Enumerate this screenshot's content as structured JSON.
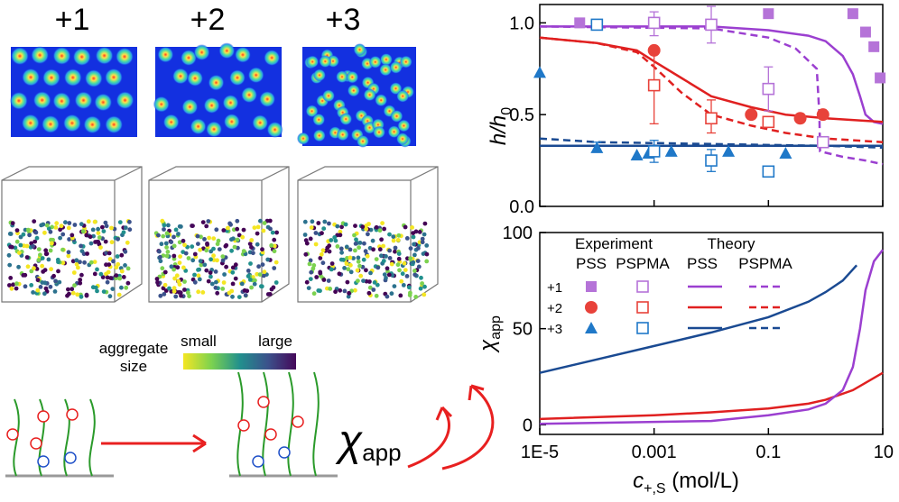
{
  "panel_left": {
    "valence_labels": [
      "+1",
      "+2",
      "+3"
    ],
    "valence_colors": [
      "#b264d6",
      "#e8423a",
      "#1f78c8"
    ],
    "colorbar": {
      "small": "small",
      "large": "large",
      "caption_line1": "aggregate",
      "caption_line2": "size"
    },
    "scheme_label": "χ",
    "scheme_sub": "app"
  },
  "chart_data": [
    {
      "type": "scatter",
      "ylabel": "h/h0",
      "ylabel_main": "h/h",
      "ylabel_sub": "0",
      "ylim": [
        0.0,
        1.1
      ],
      "y_ticks": [
        "0.0",
        "0.5",
        "1.0"
      ],
      "y_tick_values": [
        0.0,
        0.5,
        1.0
      ],
      "x_scale": "log",
      "xlim": [
        1e-05,
        10
      ],
      "series": [
        {
          "name": "+1 PSS (experiment)",
          "color": "#b573d8",
          "marker": "filled-square",
          "points": [
            [
              5e-05,
              1.0
            ],
            [
              0.1,
              1.05
            ],
            [
              3,
              1.05
            ],
            [
              5,
              0.95
            ],
            [
              7,
              0.87
            ],
            [
              9,
              0.7
            ]
          ]
        },
        {
          "name": "+1 PSPMA (experiment)",
          "color": "#b573d8",
          "marker": "open-square",
          "points": [
            [
              0.001,
              1.0
            ],
            [
              0.01,
              0.99
            ],
            [
              0.1,
              0.64
            ],
            [
              0.9,
              0.35
            ]
          ]
        },
        {
          "name": "+2 PSS (experiment)",
          "color": "#e8423a",
          "marker": "filled-circle",
          "points": [
            [
              0.001,
              0.85
            ],
            [
              0.05,
              0.5
            ],
            [
              0.36,
              0.48
            ],
            [
              0.9,
              0.5
            ]
          ]
        },
        {
          "name": "+2 PSPMA (experiment)",
          "color": "#e8423a",
          "marker": "open-square",
          "points": [
            [
              0.001,
              0.66
            ],
            [
              0.01,
              0.48
            ],
            [
              0.1,
              0.46
            ]
          ]
        },
        {
          "name": "+3 PSS (experiment)",
          "color": "#1f78c8",
          "marker": "filled-triangle",
          "points": [
            [
              1e-05,
              0.73
            ],
            [
              0.0001,
              0.32
            ],
            [
              0.0005,
              0.28
            ],
            [
              0.0008,
              0.29
            ],
            [
              0.002,
              0.3
            ],
            [
              0.02,
              0.3
            ],
            [
              0.2,
              0.29
            ]
          ]
        },
        {
          "name": "+3 PSPMA (experiment)",
          "color": "#1f78c8",
          "marker": "open-square",
          "points": [
            [
              0.0001,
              0.99
            ],
            [
              0.001,
              0.3
            ],
            [
              0.01,
              0.25
            ],
            [
              0.1,
              0.19
            ]
          ]
        }
      ],
      "error_bars": [
        {
          "color": "#b573d8",
          "x": 0.001,
          "y": 1.0,
          "lo": 0.93,
          "hi": 1.06
        },
        {
          "color": "#b573d8",
          "x": 0.01,
          "y": 0.99,
          "lo": 0.89,
          "hi": 1.09
        },
        {
          "color": "#b573d8",
          "x": 0.1,
          "y": 0.64,
          "lo": 0.52,
          "hi": 0.76
        },
        {
          "color": "#e8423a",
          "x": 0.001,
          "y": 0.66,
          "lo": 0.45,
          "hi": 0.85
        },
        {
          "color": "#e8423a",
          "x": 0.01,
          "y": 0.48,
          "lo": 0.4,
          "hi": 0.58
        },
        {
          "color": "#1f78c8",
          "x": 0.001,
          "y": 0.3,
          "lo": 0.24,
          "hi": 0.36
        },
        {
          "color": "#1f78c8",
          "x": 0.01,
          "y": 0.25,
          "lo": 0.19,
          "hi": 0.31
        },
        {
          "color": "#1f78c8",
          "x": 0.0001,
          "y": 0.32,
          "lo": 0.3,
          "hi": 0.35
        }
      ],
      "theory": [
        {
          "name": "+1 PSS theory",
          "color": "#9b3fd0",
          "dash": false,
          "points": [
            [
              1e-05,
              0.98
            ],
            [
              0.01,
              0.98
            ],
            [
              0.1,
              0.96
            ],
            [
              0.5,
              0.93
            ],
            [
              1,
              0.9
            ],
            [
              2,
              0.82
            ],
            [
              3,
              0.72
            ],
            [
              4,
              0.6
            ],
            [
              5,
              0.5
            ],
            [
              7,
              0.46
            ],
            [
              10,
              0.45
            ]
          ]
        },
        {
          "name": "+1 PSPMA theory",
          "color": "#9b3fd0",
          "dash": true,
          "points": [
            [
              1e-05,
              0.98
            ],
            [
              0.01,
              0.97
            ],
            [
              0.1,
              0.92
            ],
            [
              0.3,
              0.86
            ],
            [
              0.7,
              0.75
            ],
            [
              0.78,
              0.5
            ],
            [
              0.8,
              0.3
            ],
            [
              2,
              0.27
            ],
            [
              5,
              0.25
            ],
            [
              10,
              0.23
            ]
          ]
        },
        {
          "name": "+2 PSS theory",
          "color": "#e02020",
          "dash": false,
          "points": [
            [
              1e-05,
              0.92
            ],
            [
              0.0001,
              0.89
            ],
            [
              0.0005,
              0.85
            ],
            [
              0.001,
              0.79
            ],
            [
              0.003,
              0.7
            ],
            [
              0.01,
              0.6
            ],
            [
              0.05,
              0.54
            ],
            [
              0.2,
              0.5
            ],
            [
              1,
              0.48
            ],
            [
              10,
              0.46
            ]
          ]
        },
        {
          "name": "+2 PSPMA theory",
          "color": "#e02020",
          "dash": true,
          "points": [
            [
              1e-05,
              0.92
            ],
            [
              0.0001,
              0.89
            ],
            [
              0.0005,
              0.84
            ],
            [
              0.001,
              0.76
            ],
            [
              0.003,
              0.62
            ],
            [
              0.01,
              0.5
            ],
            [
              0.05,
              0.44
            ],
            [
              0.2,
              0.4
            ],
            [
              1,
              0.37
            ],
            [
              10,
              0.35
            ]
          ]
        },
        {
          "name": "+3 PSS theory",
          "color": "#1a4a92",
          "dash": false,
          "points": [
            [
              1e-05,
              0.33
            ],
            [
              10,
              0.33
            ]
          ]
        },
        {
          "name": "+3 PSPMA theory",
          "color": "#1a4a92",
          "dash": true,
          "points": [
            [
              1e-05,
              0.37
            ],
            [
              0.0001,
              0.35
            ],
            [
              0.01,
              0.34
            ],
            [
              1,
              0.33
            ],
            [
              10,
              0.32
            ]
          ]
        }
      ]
    },
    {
      "type": "line",
      "ylabel": "χapp",
      "ylabel_main": "χ",
      "ylabel_sub": "app",
      "xlabel": "c+,S (mol/L)",
      "xlabel_main": "c",
      "xlabel_sub": "+,S",
      "xlabel_tail": " (mol/L)",
      "x_scale": "log",
      "xlim": [
        1e-05,
        10
      ],
      "x_ticks": [
        "1E-5",
        "0.001",
        "0.1",
        "10"
      ],
      "x_tick_values": [
        1e-05,
        0.001,
        0.1,
        10
      ],
      "ylim": [
        -5,
        100
      ],
      "y_ticks": [
        "0",
        "50",
        "100"
      ],
      "y_tick_values": [
        0,
        50,
        100
      ],
      "series": [
        {
          "name": "+3",
          "color": "#1a4a92",
          "points": [
            [
              1e-05,
              27
            ],
            [
              0.0001,
              34
            ],
            [
              0.001,
              41
            ],
            [
              0.01,
              48
            ],
            [
              0.1,
              56
            ],
            [
              0.5,
              64
            ],
            [
              1,
              69
            ],
            [
              2,
              75
            ],
            [
              3.5,
              83
            ]
          ]
        },
        {
          "name": "+2",
          "color": "#e02020",
          "points": [
            [
              1e-05,
              3
            ],
            [
              0.001,
              5
            ],
            [
              0.01,
              6.5
            ],
            [
              0.1,
              8.5
            ],
            [
              0.5,
              11
            ],
            [
              1,
              13
            ],
            [
              3,
              18
            ],
            [
              10,
              27
            ]
          ]
        },
        {
          "name": "+1",
          "color": "#9b3fd0",
          "points": [
            [
              1e-05,
              0.5
            ],
            [
              0.01,
              2
            ],
            [
              0.1,
              5
            ],
            [
              0.5,
              8
            ],
            [
              1,
              11
            ],
            [
              2,
              18
            ],
            [
              3,
              30
            ],
            [
              4,
              50
            ],
            [
              5,
              70
            ],
            [
              7,
              85
            ],
            [
              10,
              91
            ]
          ]
        }
      ],
      "legend": {
        "header_experiment": "Experiment",
        "header_theory": "Theory",
        "col_pss": "PSS",
        "col_pspma": "PSPMA",
        "col_pss_theory": "PSS",
        "col_pspma_theory": "PSPMA",
        "rows": [
          {
            "label": "+1",
            "color": "#b573d8",
            "line_color": "#9b3fd0",
            "exp_pss": "filled-square"
          },
          {
            "label": "+2",
            "color": "#e8423a",
            "line_color": "#e02020",
            "exp_pss": "filled-circle"
          },
          {
            "label": "+3",
            "color": "#1f78c8",
            "line_color": "#1a4a92",
            "exp_pss": "filled-triangle"
          }
        ]
      }
    }
  ]
}
